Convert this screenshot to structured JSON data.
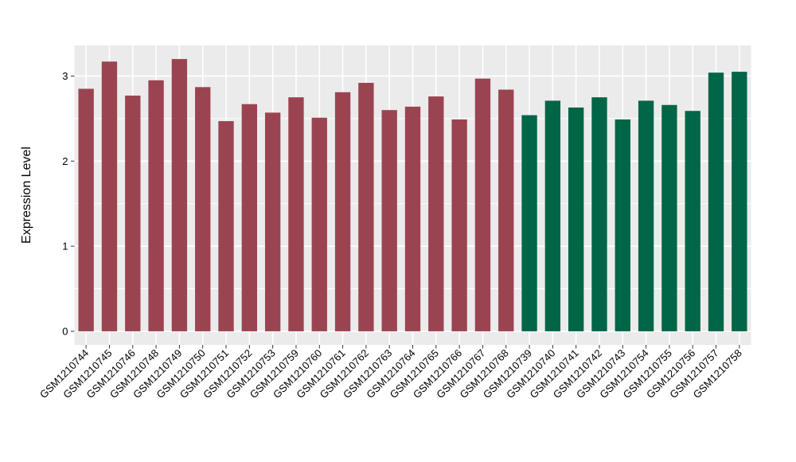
{
  "chart_data": {
    "type": "bar",
    "title": "",
    "xlabel": "",
    "ylabel": "Expression Level",
    "ylim": [
      -0.16,
      3.36
    ],
    "yticks": [
      0,
      1,
      2,
      3
    ],
    "minor_yticks": [
      0.5,
      1.5,
      2.5
    ],
    "grid": true,
    "legend": "none",
    "panel_bg": "#EBEBEB",
    "grid_color": "#FFFFFF",
    "tick_color": "#333333",
    "bar_width_fraction": 0.66,
    "groups": [
      {
        "name": "group-1",
        "color": "#9B4451"
      },
      {
        "name": "group-2",
        "color": "#006647"
      }
    ],
    "bars": [
      {
        "label": "GSM1210744",
        "value": 2.85,
        "group": 0
      },
      {
        "label": "GSM1210745",
        "value": 3.17,
        "group": 0
      },
      {
        "label": "GSM1210746",
        "value": 2.77,
        "group": 0
      },
      {
        "label": "GSM1210748",
        "value": 2.95,
        "group": 0
      },
      {
        "label": "GSM1210749",
        "value": 3.2,
        "group": 0
      },
      {
        "label": "GSM1210750",
        "value": 2.87,
        "group": 0
      },
      {
        "label": "GSM1210751",
        "value": 2.47,
        "group": 0
      },
      {
        "label": "GSM1210752",
        "value": 2.67,
        "group": 0
      },
      {
        "label": "GSM1210753",
        "value": 2.57,
        "group": 0
      },
      {
        "label": "GSM1210759",
        "value": 2.75,
        "group": 0
      },
      {
        "label": "GSM1210760",
        "value": 2.51,
        "group": 0
      },
      {
        "label": "GSM1210761",
        "value": 2.81,
        "group": 0
      },
      {
        "label": "GSM1210762",
        "value": 2.92,
        "group": 0
      },
      {
        "label": "GSM1210763",
        "value": 2.6,
        "group": 0
      },
      {
        "label": "GSM1210764",
        "value": 2.64,
        "group": 0
      },
      {
        "label": "GSM1210765",
        "value": 2.76,
        "group": 0
      },
      {
        "label": "GSM1210766",
        "value": 2.49,
        "group": 0
      },
      {
        "label": "GSM1210767",
        "value": 2.97,
        "group": 0
      },
      {
        "label": "GSM1210768",
        "value": 2.84,
        "group": 0
      },
      {
        "label": "GSM1210739",
        "value": 2.54,
        "group": 1
      },
      {
        "label": "GSM1210740",
        "value": 2.71,
        "group": 1
      },
      {
        "label": "GSM1210741",
        "value": 2.63,
        "group": 1
      },
      {
        "label": "GSM1210742",
        "value": 2.75,
        "group": 1
      },
      {
        "label": "GSM1210743",
        "value": 2.49,
        "group": 1
      },
      {
        "label": "GSM1210754",
        "value": 2.71,
        "group": 1
      },
      {
        "label": "GSM1210755",
        "value": 2.66,
        "group": 1
      },
      {
        "label": "GSM1210756",
        "value": 2.59,
        "group": 1
      },
      {
        "label": "GSM1210757",
        "value": 3.04,
        "group": 1
      },
      {
        "label": "GSM1210758",
        "value": 3.05,
        "group": 1
      }
    ]
  }
}
